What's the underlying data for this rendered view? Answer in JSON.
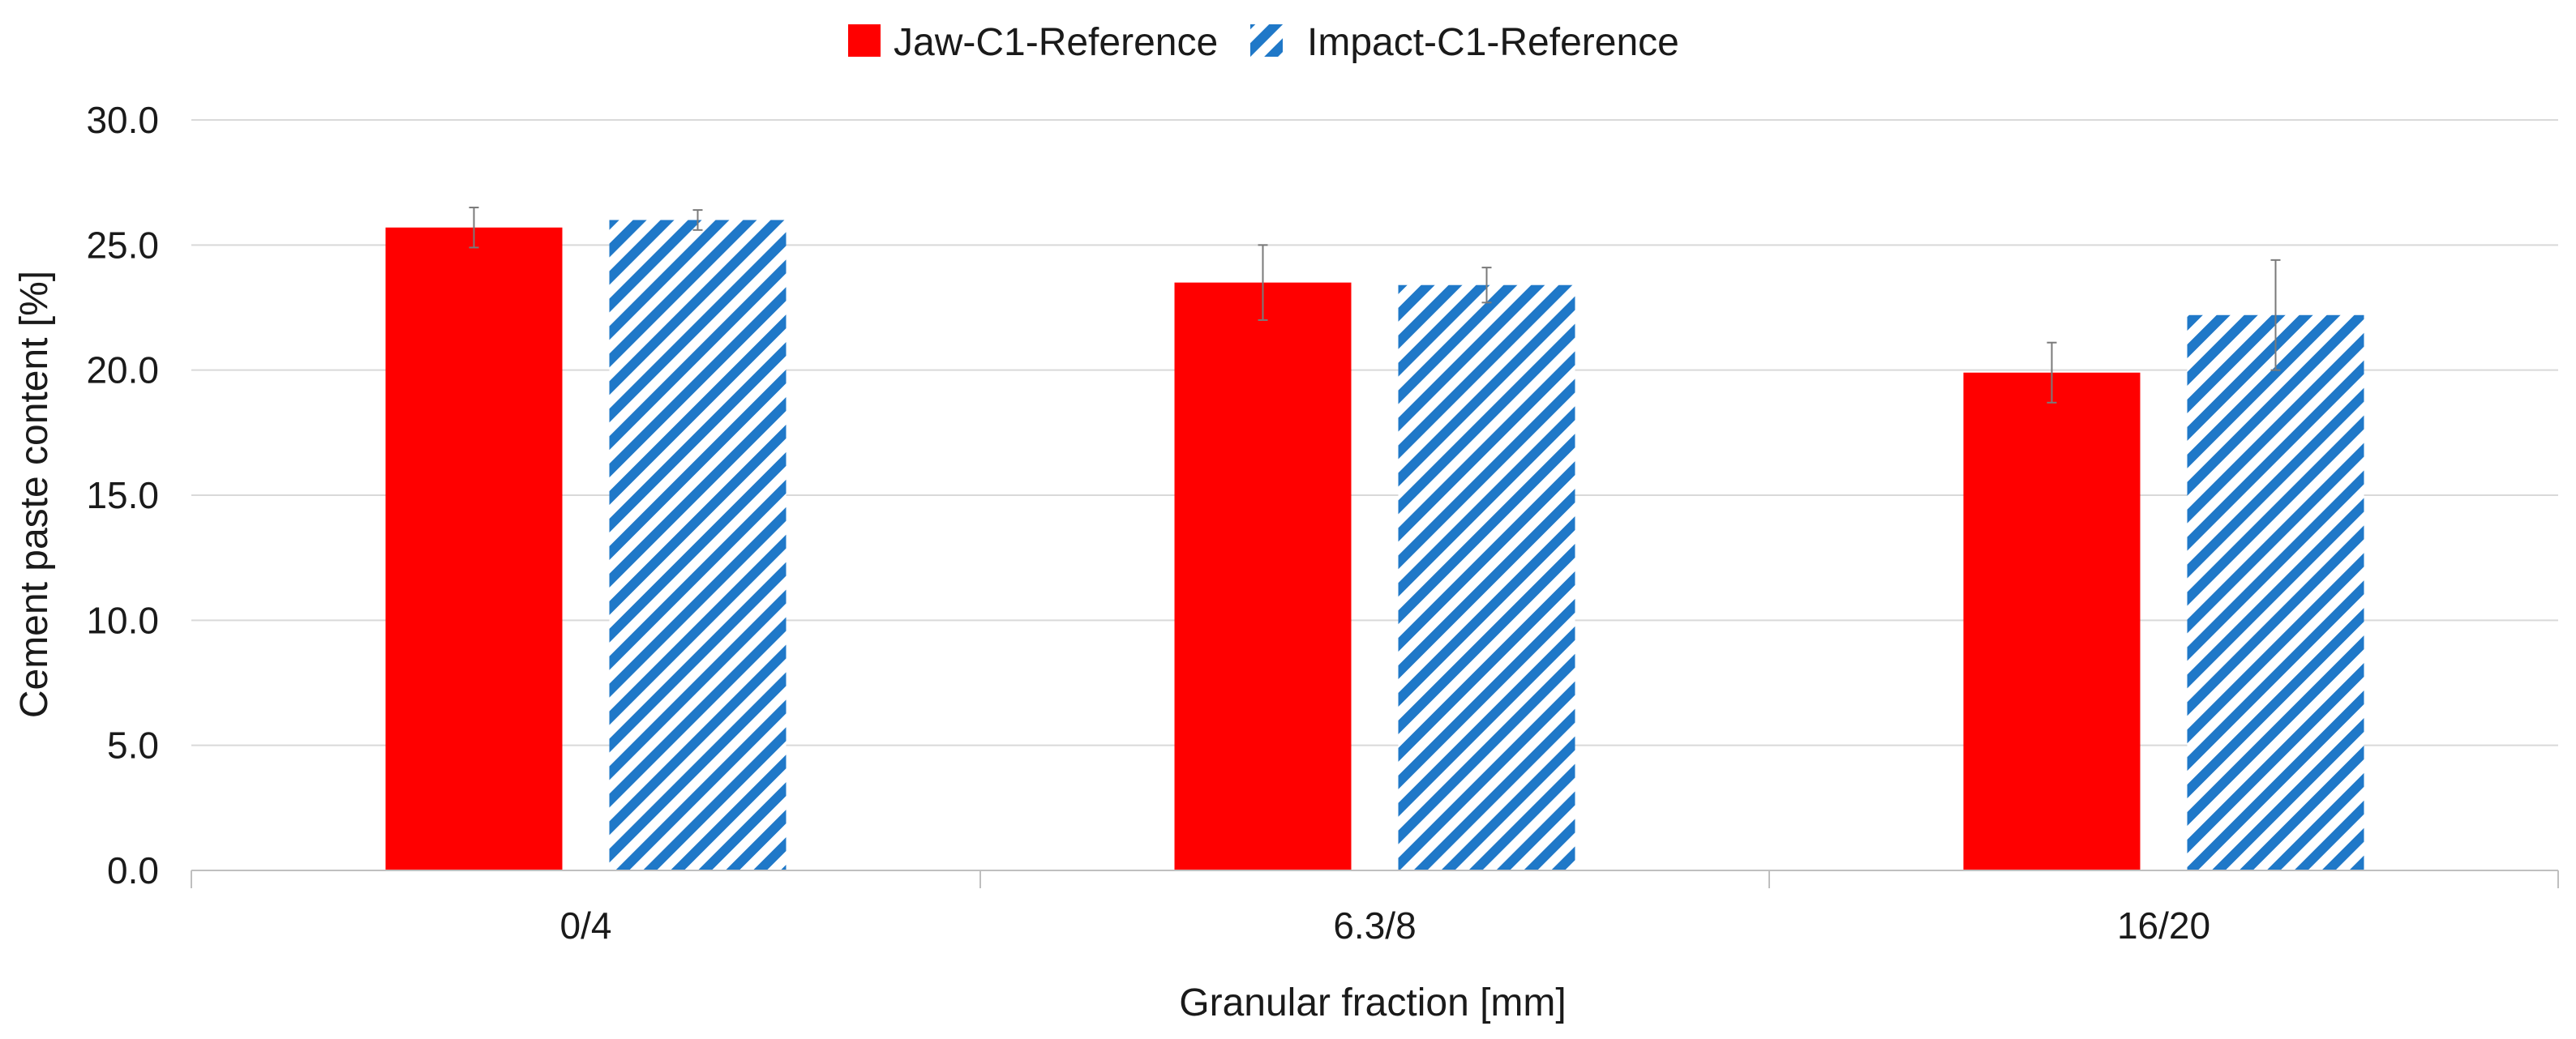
{
  "chart_data": {
    "type": "bar",
    "categories": [
      "0/4",
      "6.3/8",
      "16/20"
    ],
    "series": [
      {
        "name": "Jaw-C1-Reference",
        "values": [
          25.7,
          23.5,
          19.9
        ],
        "errors": [
          0.8,
          1.5,
          1.2
        ],
        "color": "#ff0000",
        "fill": "solid"
      },
      {
        "name": "Impact-C1-Reference",
        "values": [
          26.0,
          23.4,
          22.2
        ],
        "errors": [
          0.4,
          0.7,
          2.2
        ],
        "color": "#1f78c8",
        "fill": "diagonal-hatch"
      }
    ],
    "xlabel": "Granular fraction [mm]",
    "ylabel": "Cement paste content [%]",
    "ylim": [
      0,
      30
    ],
    "yticks": [
      "0.0",
      "5.0",
      "10.0",
      "15.0",
      "20.0",
      "25.0",
      "30.0"
    ],
    "grid": true,
    "legend": "top-center"
  }
}
